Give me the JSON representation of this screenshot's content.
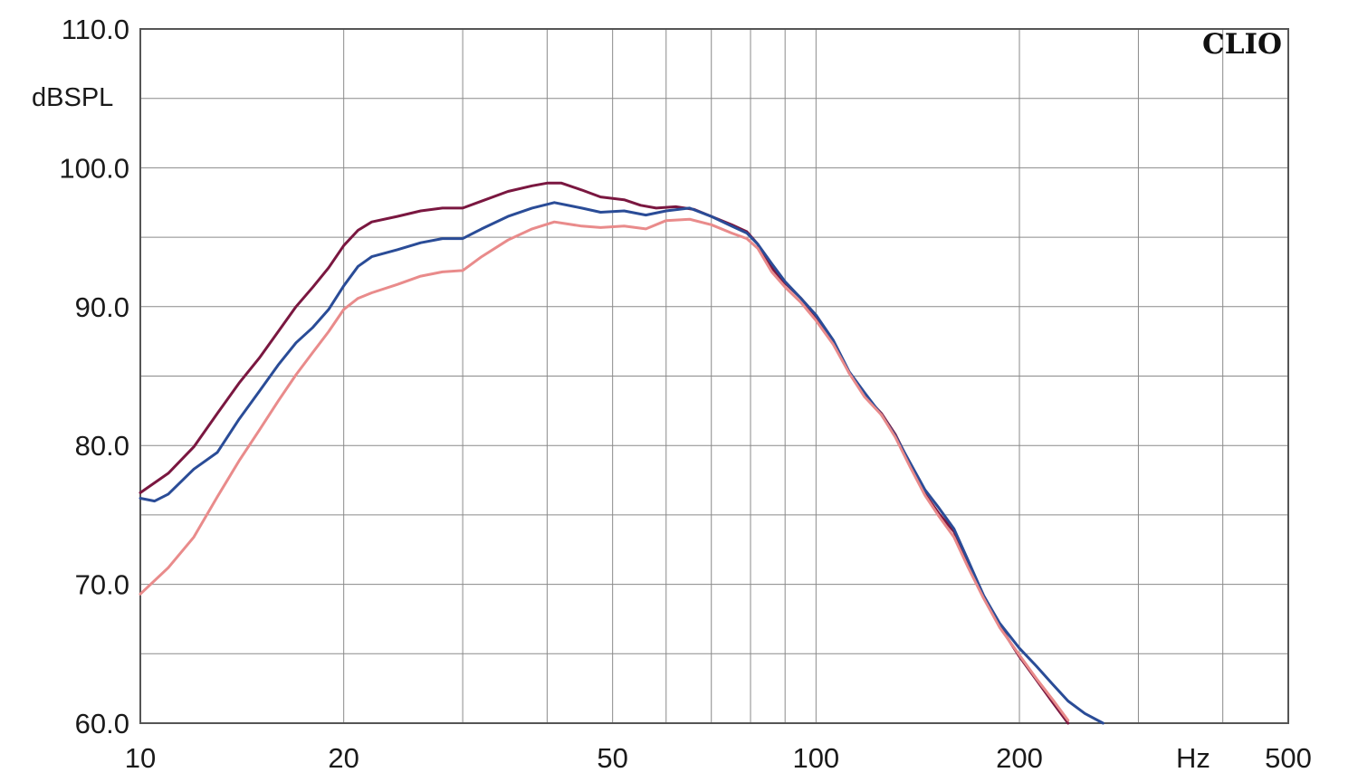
{
  "chart_data": {
    "type": "line",
    "brand": "CLIO",
    "ylabel": "dBSPL",
    "xlabel": "Hz",
    "xscale": "log",
    "xlim": [
      10,
      500
    ],
    "ylim": [
      60,
      110
    ],
    "y_ticks": [
      {
        "value": 60,
        "label": "60.0"
      },
      {
        "value": 70,
        "label": "70.0"
      },
      {
        "value": 80,
        "label": "80.0"
      },
      {
        "value": 90,
        "label": "90.0"
      },
      {
        "value": 100,
        "label": "100.0"
      },
      {
        "value": 110,
        "label": "110.0"
      }
    ],
    "x_ticks": [
      {
        "value": 10,
        "label": "10"
      },
      {
        "value": 20,
        "label": "20"
      },
      {
        "value": 50,
        "label": "50"
      },
      {
        "value": 100,
        "label": "100"
      },
      {
        "value": 200,
        "label": "200"
      },
      {
        "value": 500,
        "label": "500"
      }
    ],
    "grid": true,
    "x_gridlines": [
      20,
      30,
      40,
      50,
      60,
      70,
      80,
      90,
      100,
      200,
      300,
      400
    ],
    "y_gridlines": [
      65,
      70,
      75,
      80,
      85,
      90,
      95,
      100,
      105
    ],
    "series": [
      {
        "color": "#7a1740",
        "points": [
          [
            10,
            76.6
          ],
          [
            11,
            78
          ],
          [
            12,
            79.9
          ],
          [
            13,
            82.3
          ],
          [
            14,
            84.5
          ],
          [
            15,
            86.3
          ],
          [
            16,
            88.2
          ],
          [
            17,
            90
          ],
          [
            18,
            91.4
          ],
          [
            19,
            92.8
          ],
          [
            20,
            94.4
          ],
          [
            21,
            95.5
          ],
          [
            22,
            96.1
          ],
          [
            24,
            96.5
          ],
          [
            26,
            96.9
          ],
          [
            28,
            97.1
          ],
          [
            30,
            97.1
          ],
          [
            32,
            97.6
          ],
          [
            35,
            98.3
          ],
          [
            38,
            98.7
          ],
          [
            40,
            98.9
          ],
          [
            42,
            98.9
          ],
          [
            45,
            98.4
          ],
          [
            48,
            97.9
          ],
          [
            52,
            97.7
          ],
          [
            55,
            97.3
          ],
          [
            58,
            97.1
          ],
          [
            62,
            97.2
          ],
          [
            66,
            97
          ],
          [
            70,
            96.5
          ],
          [
            75,
            95.9
          ],
          [
            79,
            95.4
          ],
          [
            82,
            94.5
          ],
          [
            86,
            92.8
          ],
          [
            90,
            91.7
          ],
          [
            95,
            90.6
          ],
          [
            100,
            89.3
          ],
          [
            106,
            87.5
          ],
          [
            112,
            85.2
          ],
          [
            118,
            83.6
          ],
          [
            125,
            82.3
          ],
          [
            131,
            80.8
          ],
          [
            138,
            78.6
          ],
          [
            145,
            76.5
          ],
          [
            152,
            75.1
          ],
          [
            160,
            73.8
          ],
          [
            168,
            71.6
          ],
          [
            177,
            69.2
          ],
          [
            187,
            67
          ],
          [
            200,
            64.8
          ],
          [
            212,
            63.1
          ],
          [
            224,
            61.5
          ],
          [
            236,
            60
          ]
        ]
      },
      {
        "color": "#2a4c97",
        "points": [
          [
            10,
            76.2
          ],
          [
            10.5,
            76
          ],
          [
            11,
            76.5
          ],
          [
            12,
            78.3
          ],
          [
            13,
            79.5
          ],
          [
            14,
            81.9
          ],
          [
            15,
            83.9
          ],
          [
            16,
            85.8
          ],
          [
            17,
            87.4
          ],
          [
            18,
            88.5
          ],
          [
            19,
            89.8
          ],
          [
            20,
            91.5
          ],
          [
            21,
            92.9
          ],
          [
            22,
            93.6
          ],
          [
            24,
            94.1
          ],
          [
            26,
            94.6
          ],
          [
            28,
            94.9
          ],
          [
            30,
            94.9
          ],
          [
            32,
            95.6
          ],
          [
            35,
            96.5
          ],
          [
            38,
            97.1
          ],
          [
            41,
            97.5
          ],
          [
            45,
            97.1
          ],
          [
            48,
            96.8
          ],
          [
            52,
            96.9
          ],
          [
            56,
            96.6
          ],
          [
            60,
            96.9
          ],
          [
            65,
            97.1
          ],
          [
            70,
            96.5
          ],
          [
            75,
            95.8
          ],
          [
            79,
            95.3
          ],
          [
            82,
            94.5
          ],
          [
            86,
            93.1
          ],
          [
            90,
            91.8
          ],
          [
            95,
            90.6
          ],
          [
            100,
            89.4
          ],
          [
            106,
            87.6
          ],
          [
            112,
            85.3
          ],
          [
            118,
            83.8
          ],
          [
            125,
            82.2
          ],
          [
            131,
            80.7
          ],
          [
            138,
            78.7
          ],
          [
            145,
            76.8
          ],
          [
            152,
            75.5
          ],
          [
            160,
            74
          ],
          [
            168,
            71.7
          ],
          [
            177,
            69.2
          ],
          [
            187,
            67.2
          ],
          [
            200,
            65.4
          ],
          [
            212,
            64.1
          ],
          [
            224,
            62.8
          ],
          [
            236,
            61.6
          ],
          [
            250,
            60.7
          ],
          [
            266,
            60
          ]
        ]
      },
      {
        "color": "#e98b8b",
        "points": [
          [
            10,
            69.3
          ],
          [
            11,
            71.2
          ],
          [
            12,
            73.4
          ],
          [
            13,
            76.3
          ],
          [
            14,
            78.9
          ],
          [
            15,
            81.1
          ],
          [
            16,
            83.2
          ],
          [
            17,
            85.1
          ],
          [
            18,
            86.7
          ],
          [
            19,
            88.2
          ],
          [
            20,
            89.8
          ],
          [
            21,
            90.6
          ],
          [
            22,
            91
          ],
          [
            24,
            91.6
          ],
          [
            26,
            92.2
          ],
          [
            28,
            92.5
          ],
          [
            30,
            92.6
          ],
          [
            32,
            93.6
          ],
          [
            35,
            94.8
          ],
          [
            38,
            95.6
          ],
          [
            41,
            96.1
          ],
          [
            45,
            95.8
          ],
          [
            48,
            95.7
          ],
          [
            52,
            95.8
          ],
          [
            56,
            95.6
          ],
          [
            60,
            96.2
          ],
          [
            65,
            96.3
          ],
          [
            70,
            95.9
          ],
          [
            75,
            95.3
          ],
          [
            79,
            94.9
          ],
          [
            82,
            94.2
          ],
          [
            86,
            92.5
          ],
          [
            90,
            91.4
          ],
          [
            95,
            90.3
          ],
          [
            100,
            89
          ],
          [
            106,
            87.3
          ],
          [
            112,
            85.2
          ],
          [
            118,
            83.5
          ],
          [
            125,
            82.2
          ],
          [
            131,
            80.6
          ],
          [
            138,
            78.4
          ],
          [
            145,
            76.4
          ],
          [
            152,
            74.9
          ],
          [
            160,
            73.4
          ],
          [
            168,
            71.2
          ],
          [
            177,
            69
          ],
          [
            187,
            66.9
          ],
          [
            200,
            64.9
          ],
          [
            212,
            63.2
          ],
          [
            224,
            61.7
          ],
          [
            236,
            60.2
          ]
        ]
      }
    ]
  }
}
